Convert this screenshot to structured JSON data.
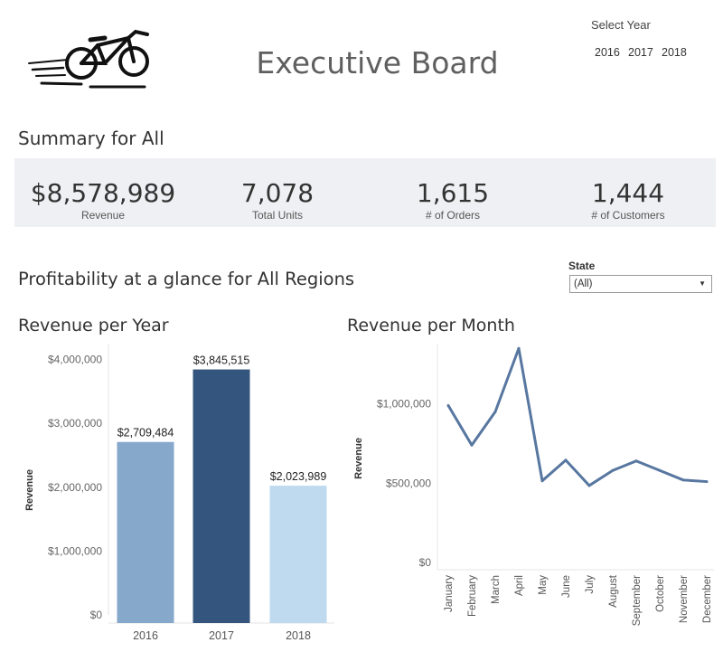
{
  "header": {
    "title": "Executive Board",
    "logo_icon": "bicycle-logo-icon",
    "year_filter": {
      "label": "Select Year",
      "options": [
        "2016",
        "2017",
        "2018"
      ]
    }
  },
  "summary": {
    "title": "Summary for All",
    "kpis": [
      {
        "value": "$8,578,989",
        "label": "Revenue"
      },
      {
        "value": "7,078",
        "label": "Total Units"
      },
      {
        "value": "1,615",
        "label": "# of Orders"
      },
      {
        "value": "1,444",
        "label": "# of Customers"
      }
    ]
  },
  "profitability": {
    "title": "Profitability at a glance for All Regions",
    "state_filter": {
      "label": "State",
      "value": "(All)"
    }
  },
  "colors": {
    "bar_2016": "#86a8cb",
    "bar_2017": "#34567e",
    "bar_2018": "#bfdaee",
    "line": "#5877a0",
    "kpi_band": "#eef0f3"
  },
  "chart_data": [
    {
      "type": "bar",
      "title": "Revenue per Year",
      "ylabel": "Revenue",
      "categories": [
        "2016",
        "2017",
        "2018"
      ],
      "values": [
        2709484,
        3845515,
        2023989
      ],
      "data_labels": [
        "$2,709,484",
        "$3,845,515",
        "$2,023,989"
      ],
      "yticks": [
        0,
        1000000,
        2000000,
        3000000,
        4000000
      ],
      "ytick_labels": [
        "$0",
        "$1,000,000",
        "$2,000,000",
        "$3,000,000",
        "$4,000,000"
      ],
      "ylim": [
        0,
        4250000
      ]
    },
    {
      "type": "line",
      "title": "Revenue per Month",
      "ylabel": "Revenue",
      "categories": [
        "January",
        "February",
        "March",
        "April",
        "May",
        "June",
        "July",
        "August",
        "September",
        "October",
        "November",
        "December"
      ],
      "values": [
        990000,
        740000,
        950000,
        1350000,
        515000,
        645000,
        485000,
        580000,
        640000,
        580000,
        520000,
        510000
      ],
      "yticks": [
        0,
        500000,
        1000000
      ],
      "ytick_labels": [
        "$0",
        "$500,000",
        "$1,000,000"
      ],
      "ylim": [
        0,
        1380000
      ]
    }
  ]
}
